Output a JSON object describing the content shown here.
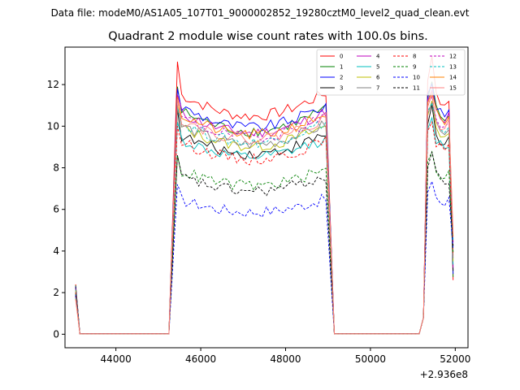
{
  "chart_data": {
    "type": "line",
    "suptitle": "Data file: modeM0/AS1A05_107T01_9000002852_19280cztM0_level2_quad_clean.evt",
    "title": "Quadrant 2 module wise count rates with 100.0s bins.",
    "xlabel": "",
    "ylabel": "",
    "x_offset_label": "+2.936e8",
    "xlim": [
      42800,
      52300
    ],
    "ylim": [
      -0.65,
      13.8
    ],
    "xticks": [
      44000,
      46000,
      48000,
      50000,
      52000
    ],
    "xtick_labels": [
      "44000",
      "46000",
      "48000",
      "50000",
      "52000"
    ],
    "yticks": [
      0,
      2,
      4,
      6,
      8,
      10,
      12
    ],
    "ytick_labels": [
      "0",
      "2",
      "4",
      "6",
      "8",
      "10",
      "12"
    ],
    "grid": false,
    "legend_position": "top-right",
    "segments": [
      {
        "start": 43050,
        "end": 45250,
        "rise_start": 45250,
        "plateau_start": 45450,
        "plateau_end": 48950,
        "fall_end": 49150
      },
      {
        "start": 49150,
        "end": 51150,
        "rise_start": 51150,
        "plateau_start": 51350,
        "plateau_end": 51850,
        "fall_end": 51950
      }
    ],
    "series": [
      {
        "name": "0",
        "color": "#ff0000",
        "dash": "solid",
        "level": 11.6,
        "peak": 13.1
      },
      {
        "name": "1",
        "color": "#008000",
        "dash": "solid",
        "level": 10.8,
        "peak": 11.9
      },
      {
        "name": "2",
        "color": "#0000ff",
        "dash": "solid",
        "level": 11.0,
        "peak": 11.8
      },
      {
        "name": "3",
        "color": "#000000",
        "dash": "solid",
        "level": 9.6,
        "peak": 10.8
      },
      {
        "name": "4",
        "color": "#bf00bf",
        "dash": "solid",
        "level": 10.7,
        "peak": 11.5
      },
      {
        "name": "5",
        "color": "#00bfbf",
        "dash": "solid",
        "level": 9.4,
        "peak": 10.2
      },
      {
        "name": "6",
        "color": "#bfbf00",
        "dash": "solid",
        "level": 10.0,
        "peak": 11.0
      },
      {
        "name": "7",
        "color": "#808080",
        "dash": "solid",
        "level": 10.1,
        "peak": 10.9
      },
      {
        "name": "8",
        "color": "#ff0000",
        "dash": "dashed",
        "level": 9.3,
        "peak": 10.0
      },
      {
        "name": "9",
        "color": "#008000",
        "dash": "dashed",
        "level": 7.9,
        "peak": 8.6
      },
      {
        "name": "10",
        "color": "#0000ff",
        "dash": "dashed",
        "level": 6.5,
        "peak": 7.2
      },
      {
        "name": "11",
        "color": "#000000",
        "dash": "dashed",
        "level": 7.6,
        "peak": 8.6
      },
      {
        "name": "12",
        "color": "#bf00bf",
        "dash": "dashed",
        "level": 10.5,
        "peak": 11.2
      },
      {
        "name": "13",
        "color": "#00bfbf",
        "dash": "dashed",
        "level": 10.2,
        "peak": 10.9
      },
      {
        "name": "14",
        "color": "#ff8000",
        "dash": "solid",
        "level": 10.6,
        "peak": 11.4
      },
      {
        "name": "15",
        "color": "#ff8080",
        "dash": "solid",
        "level": 10.4,
        "peak": 11.3
      }
    ]
  }
}
